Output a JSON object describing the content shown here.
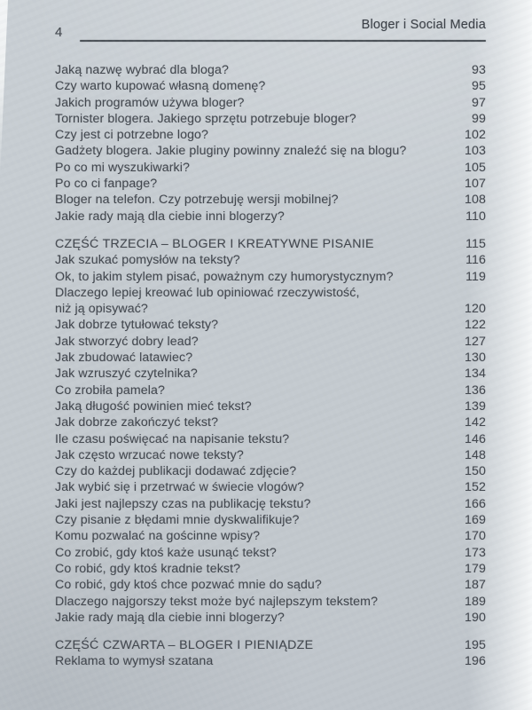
{
  "header": {
    "page_number": "4",
    "running_title": "Bloger i Social Media"
  },
  "toc": {
    "groups": [
      {
        "entries": [
          {
            "title": "Jaką nazwę wybrać dla bloga?",
            "page": "93"
          },
          {
            "title": "Czy warto kupować własną domenę?",
            "page": "95"
          },
          {
            "title": "Jakich programów używa bloger?",
            "page": "97"
          },
          {
            "title": "Tornister blogera. Jakiego sprzętu potrzebuje bloger?",
            "page": "99"
          },
          {
            "title": "Czy jest ci potrzebne logo?",
            "page": "102"
          },
          {
            "title": "Gadżety blogera. Jakie pluginy powinny znaleźć się na blogu?",
            "page": "103"
          },
          {
            "title": "Po co mi wyszukiwarki?",
            "page": "105"
          },
          {
            "title": "Po co ci fanpage?",
            "page": "107"
          },
          {
            "title": "Bloger na telefon. Czy potrzebuję wersji mobilnej?",
            "page": "108"
          },
          {
            "title": "Jakie rady mają dla ciebie inni blogerzy?",
            "page": "110"
          }
        ]
      },
      {
        "heading": {
          "title": "CZĘŚĆ TRZECIA – BLOGER I KREATYWNE PISANIE",
          "page": "115"
        },
        "entries": [
          {
            "title": "Jak szukać pomysłów na teksty?",
            "page": "116"
          },
          {
            "title": "Ok, to jakim stylem pisać, poważnym czy humorystycznym?",
            "page": "119"
          },
          {
            "title": "Dlaczego lepiej kreować lub opiniować rzeczywistość,\nniż ją opisywać?",
            "page": "120"
          },
          {
            "title": "Jak dobrze tytułować teksty?",
            "page": "122"
          },
          {
            "title": "Jak stworzyć dobry lead?",
            "page": "127"
          },
          {
            "title": "Jak zbudować latawiec?",
            "page": "130"
          },
          {
            "title": "Jak wzruszyć czytelnika?",
            "page": "134"
          },
          {
            "title": "Co zrobiła pamela?",
            "page": "136"
          },
          {
            "title": "Jaką długość powinien mieć tekst?",
            "page": "139"
          },
          {
            "title": "Jak dobrze zakończyć tekst?",
            "page": "142"
          },
          {
            "title": "Ile czasu poświęcać na napisanie tekstu?",
            "page": "146"
          },
          {
            "title": "Jak często wrzucać nowe teksty?",
            "page": "148"
          },
          {
            "title": "Czy do każdej publikacji dodawać zdjęcie?",
            "page": "150"
          },
          {
            "title": "Jak wybić się i przetrwać w świecie vlogów?",
            "page": "152"
          },
          {
            "title": "Jaki jest najlepszy czas na publikację tekstu?",
            "page": "166"
          },
          {
            "title": "Czy pisanie z błędami mnie dyskwalifikuje?",
            "page": "169"
          },
          {
            "title": "Komu pozwalać na gościnne wpisy?",
            "page": "170"
          },
          {
            "title": "Co zrobić, gdy ktoś każe usunąć tekst?",
            "page": "173"
          },
          {
            "title": "Co robić, gdy ktoś kradnie tekst?",
            "page": "179"
          },
          {
            "title": "Co robić, gdy ktoś chce pozwać mnie do sądu?",
            "page": "187"
          },
          {
            "title": "Dlaczego najgorszy tekst może być najlepszym tekstem?",
            "page": "189"
          },
          {
            "title": "Jakie rady mają dla ciebie inni blogerzy?",
            "page": "190"
          }
        ]
      },
      {
        "heading": {
          "title": "CZĘŚĆ CZWARTA – BLOGER I PIENIĄDZE",
          "page": "195"
        },
        "entries": [
          {
            "title": "Reklama to wymysł szatana",
            "page": "196"
          }
        ]
      }
    ]
  },
  "colors": {
    "paper": "#c5cbd0",
    "ink": "#42474e",
    "rule": "#4c5258"
  }
}
